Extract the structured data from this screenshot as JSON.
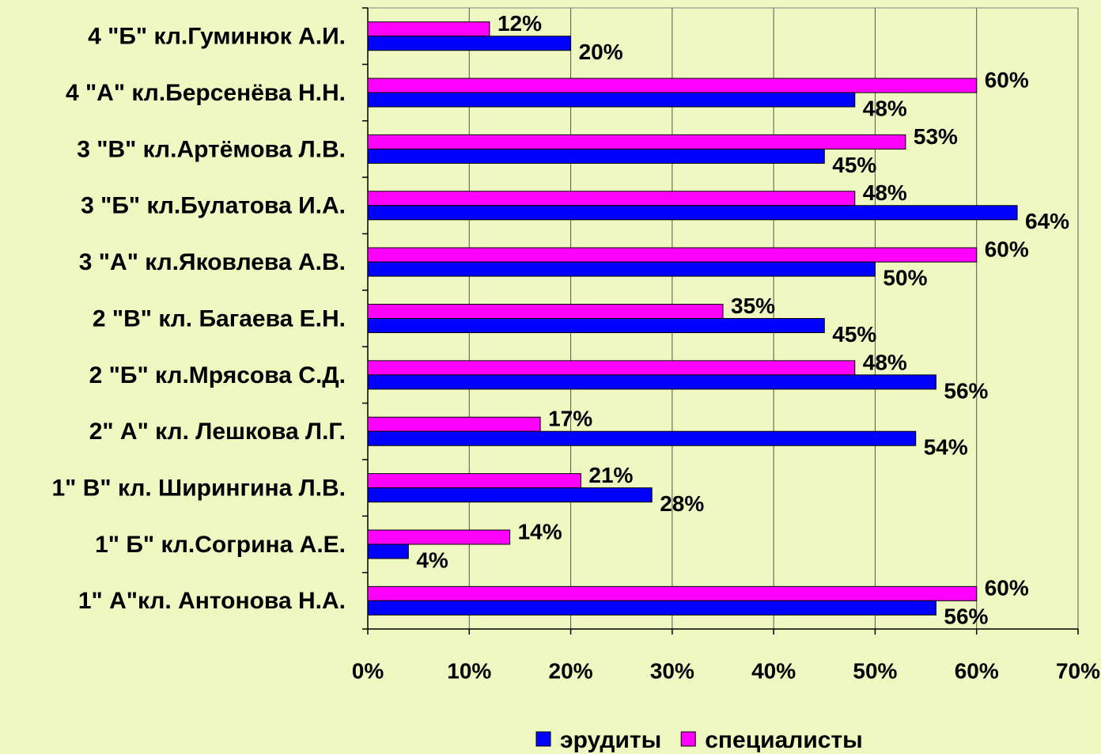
{
  "chart_data": {
    "type": "hbar",
    "categories": [
      "4 \"Б\" кл.Гуминюк А.И.",
      "4 \"А\" кл.Берсенёва Н.Н.",
      "3 \"В\" кл.Артёмова Л.В.",
      "3 \"Б\" кл.Булатова И.А.",
      "3 \"А\" кл.Яковлева А.В.",
      "2 \"В\" кл. Багаева Е.Н.",
      "2 \"Б\" кл.Мрясова С.Д.",
      "2\" А\" кл. Лешкова Л.Г.",
      "1\" В\" кл. Ширингина Л.В.",
      "1\" Б\" кл.Согрина А.Е.",
      "1\" А\"кл. Антонова Н.А."
    ],
    "series": [
      {
        "name": "эрудиты",
        "color": "#0000ff",
        "values": [
          20,
          48,
          45,
          64,
          50,
          45,
          56,
          54,
          28,
          4,
          56
        ],
        "value_labels": [
          "20%",
          "48%",
          "45%",
          "64%",
          "50%",
          "45%",
          "56%",
          "54%",
          "28%",
          "4%",
          "56%"
        ]
      },
      {
        "name": "специалисты",
        "color": "#ff00ff",
        "values": [
          12,
          60,
          53,
          48,
          60,
          35,
          48,
          17,
          21,
          14,
          60
        ],
        "value_labels": [
          "12%",
          "60%",
          "53%",
          "48%",
          "60%",
          "35%",
          "48%",
          "17%",
          "21%",
          "14%",
          "60%"
        ]
      }
    ],
    "xlim": [
      0,
      70
    ],
    "xticks": [
      {
        "value": 0,
        "label": "0%"
      },
      {
        "value": 10,
        "label": "10%"
      },
      {
        "value": 20,
        "label": "20%"
      },
      {
        "value": 30,
        "label": "30%"
      },
      {
        "value": 40,
        "label": "40%"
      },
      {
        "value": 50,
        "label": "50%"
      },
      {
        "value": 60,
        "label": "60%"
      },
      {
        "value": 70,
        "label": "70%"
      }
    ],
    "grid": true,
    "legend": "bottom"
  }
}
